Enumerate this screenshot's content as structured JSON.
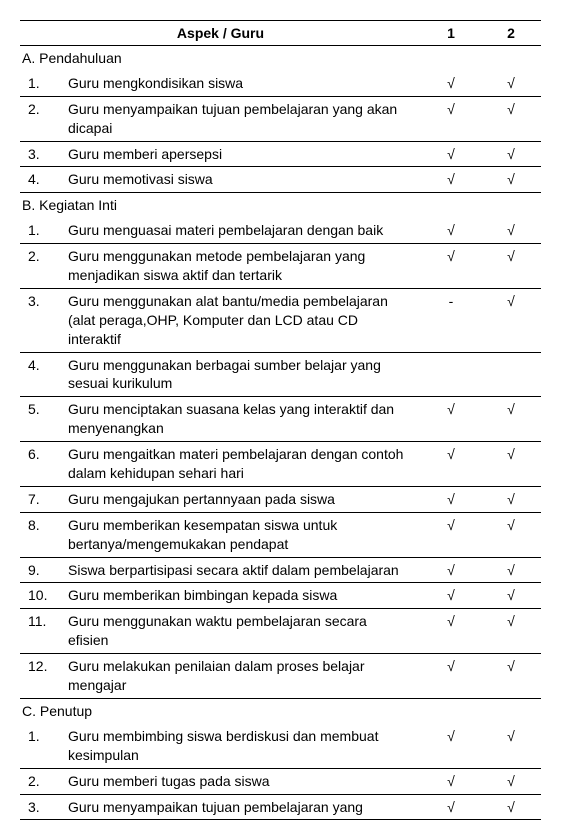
{
  "header": {
    "aspek_label": "Aspek / Guru",
    "col1": "1",
    "col2": "2"
  },
  "check_symbol": "√",
  "dash_symbol": "-",
  "sections": {
    "a": {
      "title": "A. Pendahuluan"
    },
    "b": {
      "title": "B. Kegiatan Inti"
    },
    "c": {
      "title": "C. Penutup"
    }
  },
  "a_rows": [
    {
      "n": "1.",
      "desc": "Guru mengkondisikan siswa",
      "c1": "√",
      "c2": "√"
    },
    {
      "n": "2.",
      "desc": "Guru menyampaikan tujuan pembelajaran yang akan dicapai",
      "c1": "√",
      "c2": "√"
    },
    {
      "n": "3.",
      "desc": "Guru memberi apersepsi",
      "c1": "√",
      "c2": "√"
    },
    {
      "n": "4.",
      "desc": "Guru memotivasi siswa",
      "c1": "√",
      "c2": "√"
    }
  ],
  "b_rows": [
    {
      "n": "1.",
      "desc": "Guru menguasai materi pembelajaran dengan baik",
      "c1": "√",
      "c2": "√"
    },
    {
      "n": "2.",
      "desc": "Guru menggunakan metode pembelajaran yang menjadikan siswa aktif dan tertarik",
      "c1": "√",
      "c2": "√"
    },
    {
      "n": "3.",
      "desc": "Guru menggunakan alat bantu/media pembelajaran (alat peraga,OHP, Komputer dan LCD atau CD interaktif",
      "c1": "-",
      "c2": "√"
    },
    {
      "n": "4.",
      "desc": "Guru menggunakan berbagai sumber belajar yang sesuai kurikulum",
      "c1": "",
      "c2": ""
    },
    {
      "n": "5.",
      "desc": "Guru menciptakan suasana kelas yang interaktif dan menyenangkan",
      "c1": "√",
      "c2": "√"
    },
    {
      "n": "6.",
      "desc": "Guru mengaitkan materi pembelajaran dengan contoh dalam kehidupan sehari hari",
      "c1": "√",
      "c2": "√"
    },
    {
      "n": "7.",
      "desc": "Guru mengajukan pertannyaan pada siswa",
      "c1": "√",
      "c2": "√"
    },
    {
      "n": "8.",
      "desc": "Guru memberikan kesempatan siswa untuk bertanya/mengemukakan pendapat",
      "c1": "√",
      "c2": "√"
    },
    {
      "n": "9.",
      "desc": "Siswa berpartisipasi secara aktif dalam pembelajaran",
      "c1": "√",
      "c2": "√"
    },
    {
      "n": "10.",
      "desc": "Guru memberikan bimbingan kepada siswa",
      "c1": "√",
      "c2": "√"
    },
    {
      "n": "11.",
      "desc": "Guru menggunakan waktu pembelajaran secara efisien",
      "c1": "√",
      "c2": "√"
    },
    {
      "n": "12.",
      "desc": "Guru melakukan penilaian dalam proses belajar mengajar",
      "c1": "√",
      "c2": "√"
    }
  ],
  "c_rows": [
    {
      "n": "1.",
      "desc": "Guru membimbing siswa berdiskusi dan membuat kesimpulan",
      "c1": "√",
      "c2": "√"
    },
    {
      "n": "2.",
      "desc": "Guru memberi tugas pada siswa",
      "c1": "√",
      "c2": "√"
    },
    {
      "n": "3.",
      "desc": "Guru menyampaikan tujuan pembelajaran yang",
      "c1": "√",
      "c2": "√"
    }
  ]
}
